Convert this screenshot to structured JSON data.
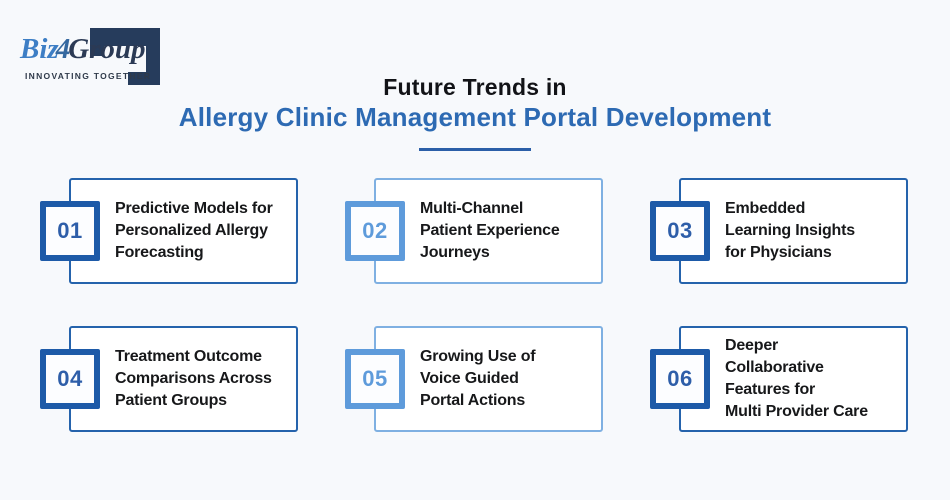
{
  "page": {
    "background": "#f7f9fc"
  },
  "logo": {
    "brand_prefix": "Biz",
    "brand_numeral": "4",
    "brand_suffix": "Group",
    "tagline": "INNOVATING TOGETHER",
    "mark_color": "#263c5c",
    "prefix_color": "#3d7ec5",
    "suffix_color": "#2b3a55"
  },
  "header": {
    "title_line1": "Future Trends in",
    "title_line2": "Allergy Clinic Management Portal Development",
    "title_line2_color": "#2d6ab3",
    "divider_color": "#2b5fa8"
  },
  "theme_colors": {
    "dark": {
      "card_border": "#2563ac",
      "badge_border": "#1d5aa8",
      "number": "#2e5ea9"
    },
    "light": {
      "card_border": "#7fb0e2",
      "badge_border": "#5e9bdb",
      "number": "#5e9bdb"
    }
  },
  "cards": [
    {
      "number": "01",
      "theme": "dark",
      "lines": [
        "Predictive Models for",
        "Personalized Allergy",
        "Forecasting"
      ]
    },
    {
      "number": "02",
      "theme": "light",
      "lines": [
        "Multi-Channel",
        "Patient Experience",
        "Journeys"
      ]
    },
    {
      "number": "03",
      "theme": "dark",
      "lines": [
        "Embedded",
        "Learning Insights",
        "for Physicians"
      ]
    },
    {
      "number": "04",
      "theme": "dark",
      "lines": [
        "Treatment Outcome",
        "Comparisons Across",
        "Patient Groups"
      ]
    },
    {
      "number": "05",
      "theme": "light",
      "lines": [
        "Growing Use of",
        "Voice Guided",
        "Portal Actions"
      ]
    },
    {
      "number": "06",
      "theme": "dark",
      "lines": [
        "Deeper",
        "Collaborative",
        "Features for",
        "Multi Provider Care"
      ]
    }
  ]
}
